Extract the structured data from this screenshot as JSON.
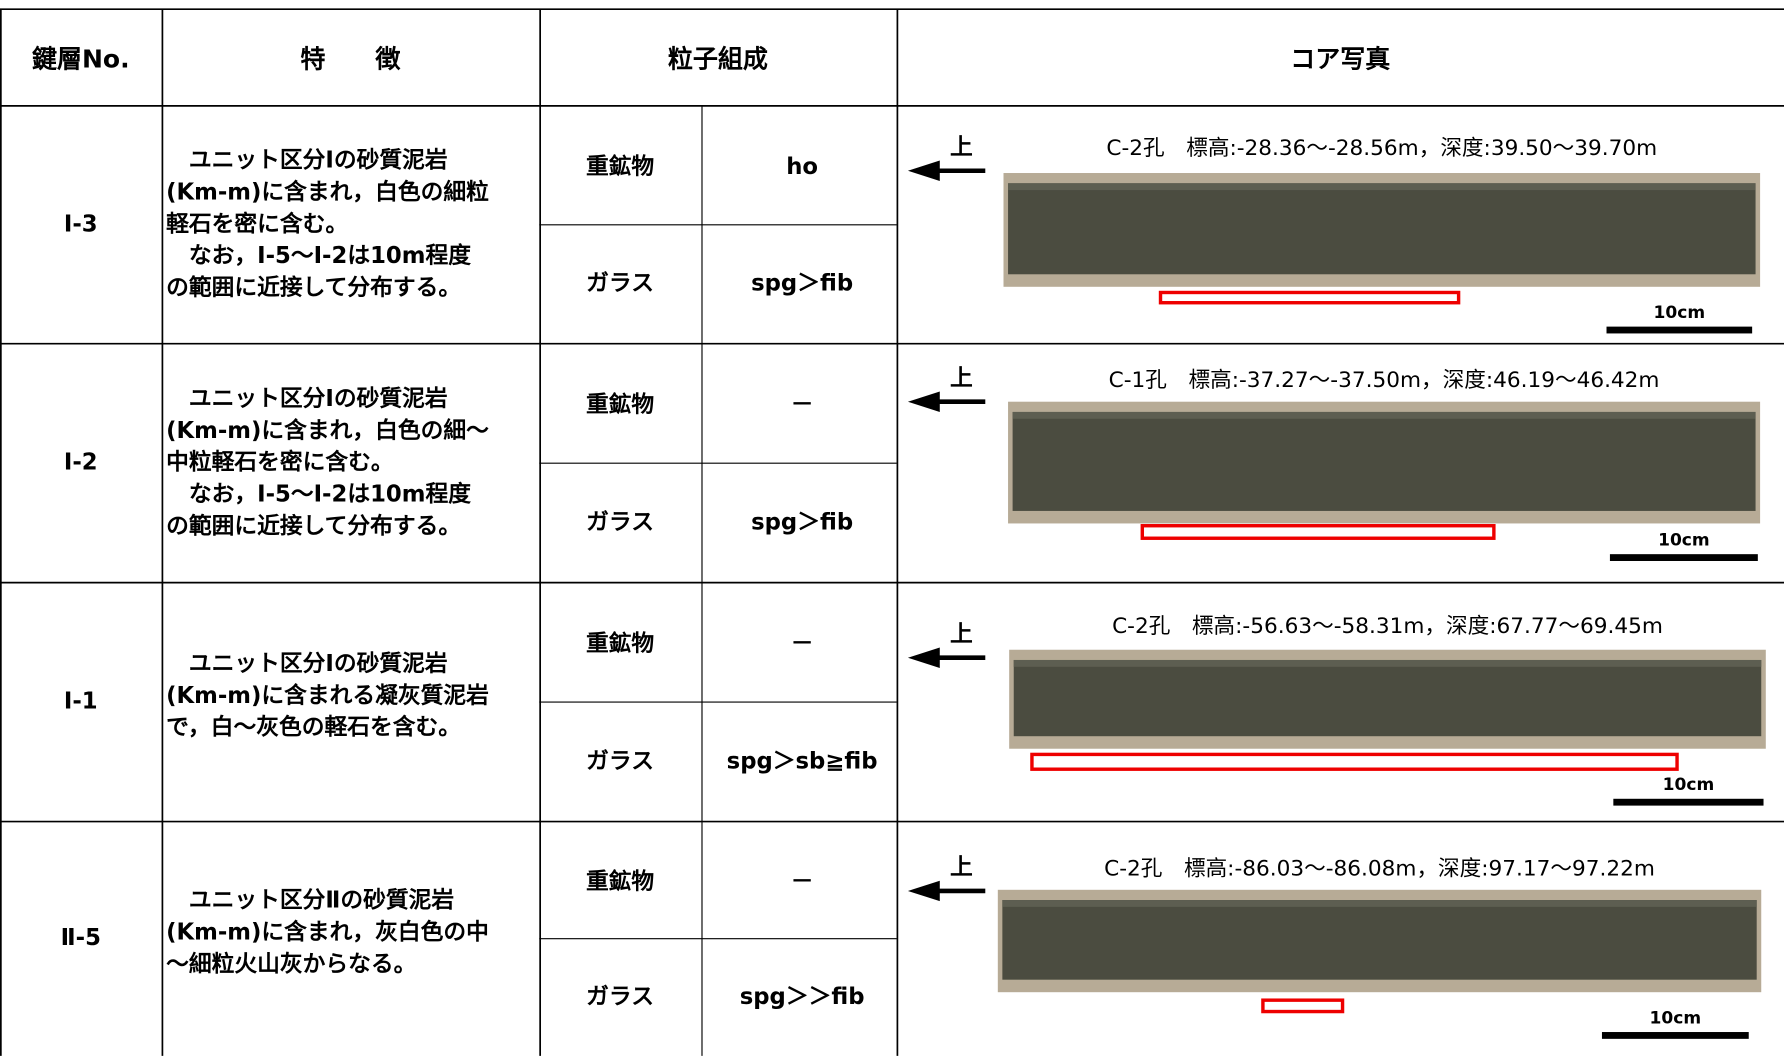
{
  "header": {
    "key_layer": "鍵層No.",
    "features": "特　　徴",
    "grain": "粒子組成",
    "photo": "コア写真"
  },
  "rows": [
    {
      "id": "Ⅰ-3",
      "features": [
        "　ユニット区分Ⅰの砂質泥岩",
        "(Km-m)に含まれ，白色の細粒",
        "軽石を密に含む。",
        "　なお，Ⅰ-5～Ⅰ-2は10m程度",
        "の範囲に近接して分布する。"
      ],
      "heavy_label": "重鉱物",
      "heavy": "ho",
      "glass_label": "ガラス",
      "glass": "spg＞fib",
      "photo": {
        "up": "上",
        "caption": "C-2孔　標高:-28.36～-28.56m，深度:39.50～39.70m",
        "scale": "10cm"
      }
    },
    {
      "id": "Ⅰ-2",
      "features": [
        "　ユニット区分Ⅰの砂質泥岩",
        "(Km-m)に含まれ，白色の細～",
        "中粒軽石を密に含む。",
        "　なお，Ⅰ-5～Ⅰ-2は10m程度",
        "の範囲に近接して分布する。"
      ],
      "heavy_label": "重鉱物",
      "heavy": "－",
      "glass_label": "ガラス",
      "glass": "spg＞fib",
      "photo": {
        "up": "上",
        "caption": "C-1孔　標高:-37.27～-37.50m，深度:46.19～46.42m",
        "scale": "10cm"
      }
    },
    {
      "id": "Ⅰ-1",
      "features": [
        "　ユニット区分Ⅰの砂質泥岩",
        "(Km-m)に含まれる凝灰質泥岩",
        "で，白～灰色の軽石を含む。"
      ],
      "heavy_label": "重鉱物",
      "heavy": "－",
      "glass_label": "ガラス",
      "glass": "spg＞sb≧fib",
      "photo": {
        "up": "上",
        "caption": "C-2孔　標高:-56.63～-58.31m，深度:67.77～69.45m",
        "scale": "10cm"
      }
    },
    {
      "id": "Ⅱ-5",
      "features": [
        "　ユニット区分Ⅱの砂質泥岩",
        "(Km-m)に含まれ，灰白色の中",
        "～細粒火山灰からなる。"
      ],
      "heavy_label": "重鉱物",
      "heavy": "－",
      "glass_label": "ガラス",
      "glass": "spg＞＞fib",
      "photo": {
        "up": "上",
        "caption": "C-2孔　標高:-86.03～-86.08m，深度:97.17～97.22m",
        "scale": "10cm"
      }
    }
  ]
}
